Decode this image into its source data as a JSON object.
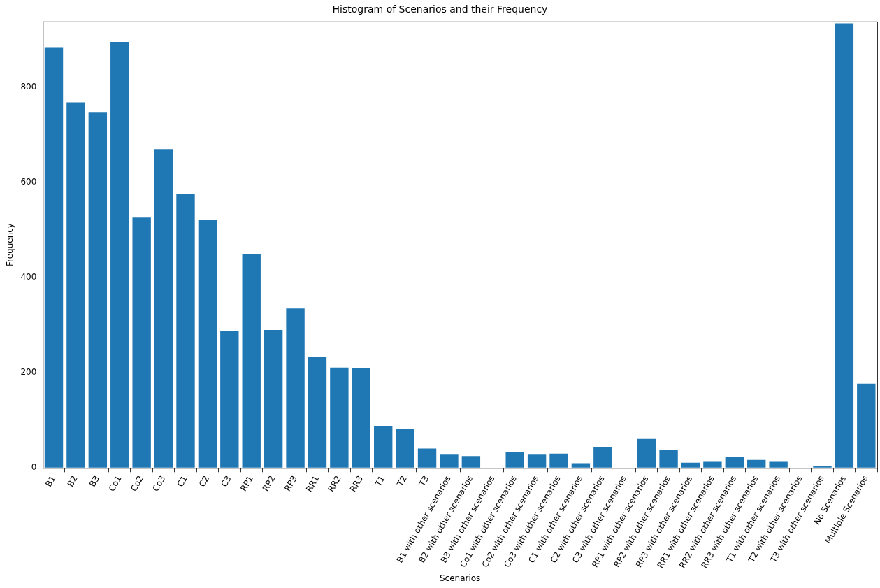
{
  "chart_data": {
    "type": "bar",
    "title": "Histogram of Scenarios and their Frequency",
    "xlabel": "Scenarios",
    "ylabel": "Frequency",
    "categories": [
      "B1",
      "B2",
      "B3",
      "Co1",
      "Co2",
      "Co3",
      "C1",
      "C2",
      "C3",
      "RP1",
      "RP2",
      "RP3",
      "RR1",
      "RR2",
      "RR3",
      "T1",
      "T2",
      "T3",
      "B1 with other scenarios",
      "B2 with other scenarios",
      "B3 with other scenarios",
      "Co1 with other scenarios",
      "Co2 with other scenarios",
      "Co3 with other scenarios",
      "C1 with other scenarios",
      "C2 with other scenarios",
      "C3 with other scenarios",
      "RP1 with other scenarios",
      "RP2 with other scenarios",
      "RP3 with other scenarios",
      "RR1 with other scenarios",
      "RR2 with other scenarios",
      "RR3 with other scenarios",
      "T1 with other scenarios",
      "T2 with other scenarios",
      "T3 with other scenarios",
      "No Scenarios",
      "Multiple Scenarios"
    ],
    "values": [
      884,
      768,
      748,
      895,
      526,
      670,
      575,
      521,
      288,
      450,
      290,
      335,
      233,
      211,
      209,
      88,
      82,
      41,
      28,
      25,
      0,
      34,
      28,
      30,
      10,
      43,
      0,
      61,
      37,
      11,
      13,
      24,
      17,
      13,
      0,
      4,
      934,
      177
    ],
    "color": "#1f77b4",
    "ylim": [
      0,
      938
    ],
    "yticks": [
      0,
      200,
      400,
      600,
      800
    ],
    "grid": false,
    "legend": false
  }
}
